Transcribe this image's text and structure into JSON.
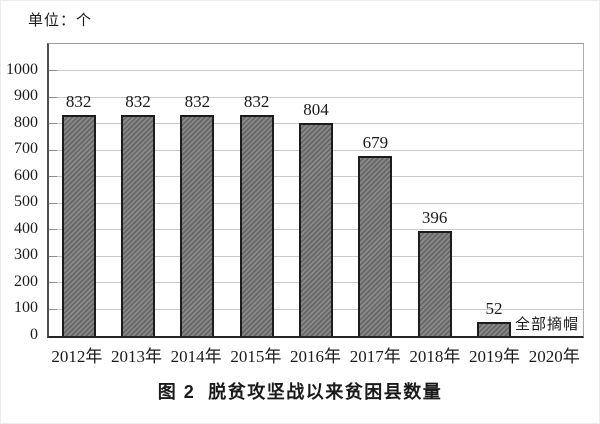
{
  "figure": {
    "unit_label": "单位：个",
    "caption": "图 2  脱贫攻坚战以来贫困县数量"
  },
  "chart_data": {
    "type": "bar",
    "title": "图 2 脱贫攻坚战以来贫困县数量",
    "unit": "单位：个",
    "categories": [
      "2012年",
      "2013年",
      "2014年",
      "2015年",
      "2016年",
      "2017年",
      "2018年",
      "2019年",
      "2020年"
    ],
    "values": [
      832,
      832,
      832,
      832,
      804,
      679,
      396,
      52,
      null
    ],
    "annotation": {
      "text": "全部摘帽",
      "target_category": "2019年"
    },
    "xlabel": "",
    "ylabel": "",
    "ylim": [
      0,
      1100
    ],
    "yticks": [
      0,
      100,
      200,
      300,
      400,
      500,
      600,
      700,
      800,
      900,
      1000
    ],
    "grid": true,
    "legend": "none",
    "colors": {
      "bar_fill": "#7a7a7a",
      "bar_hatch": "#696969",
      "bar_border": "#1c1c1c",
      "gridline": "#c9c9c9",
      "axis": "#4f4f4f",
      "frame": "#9a9a9a",
      "text": "#1a1a1a",
      "background": "#ffffff"
    }
  }
}
